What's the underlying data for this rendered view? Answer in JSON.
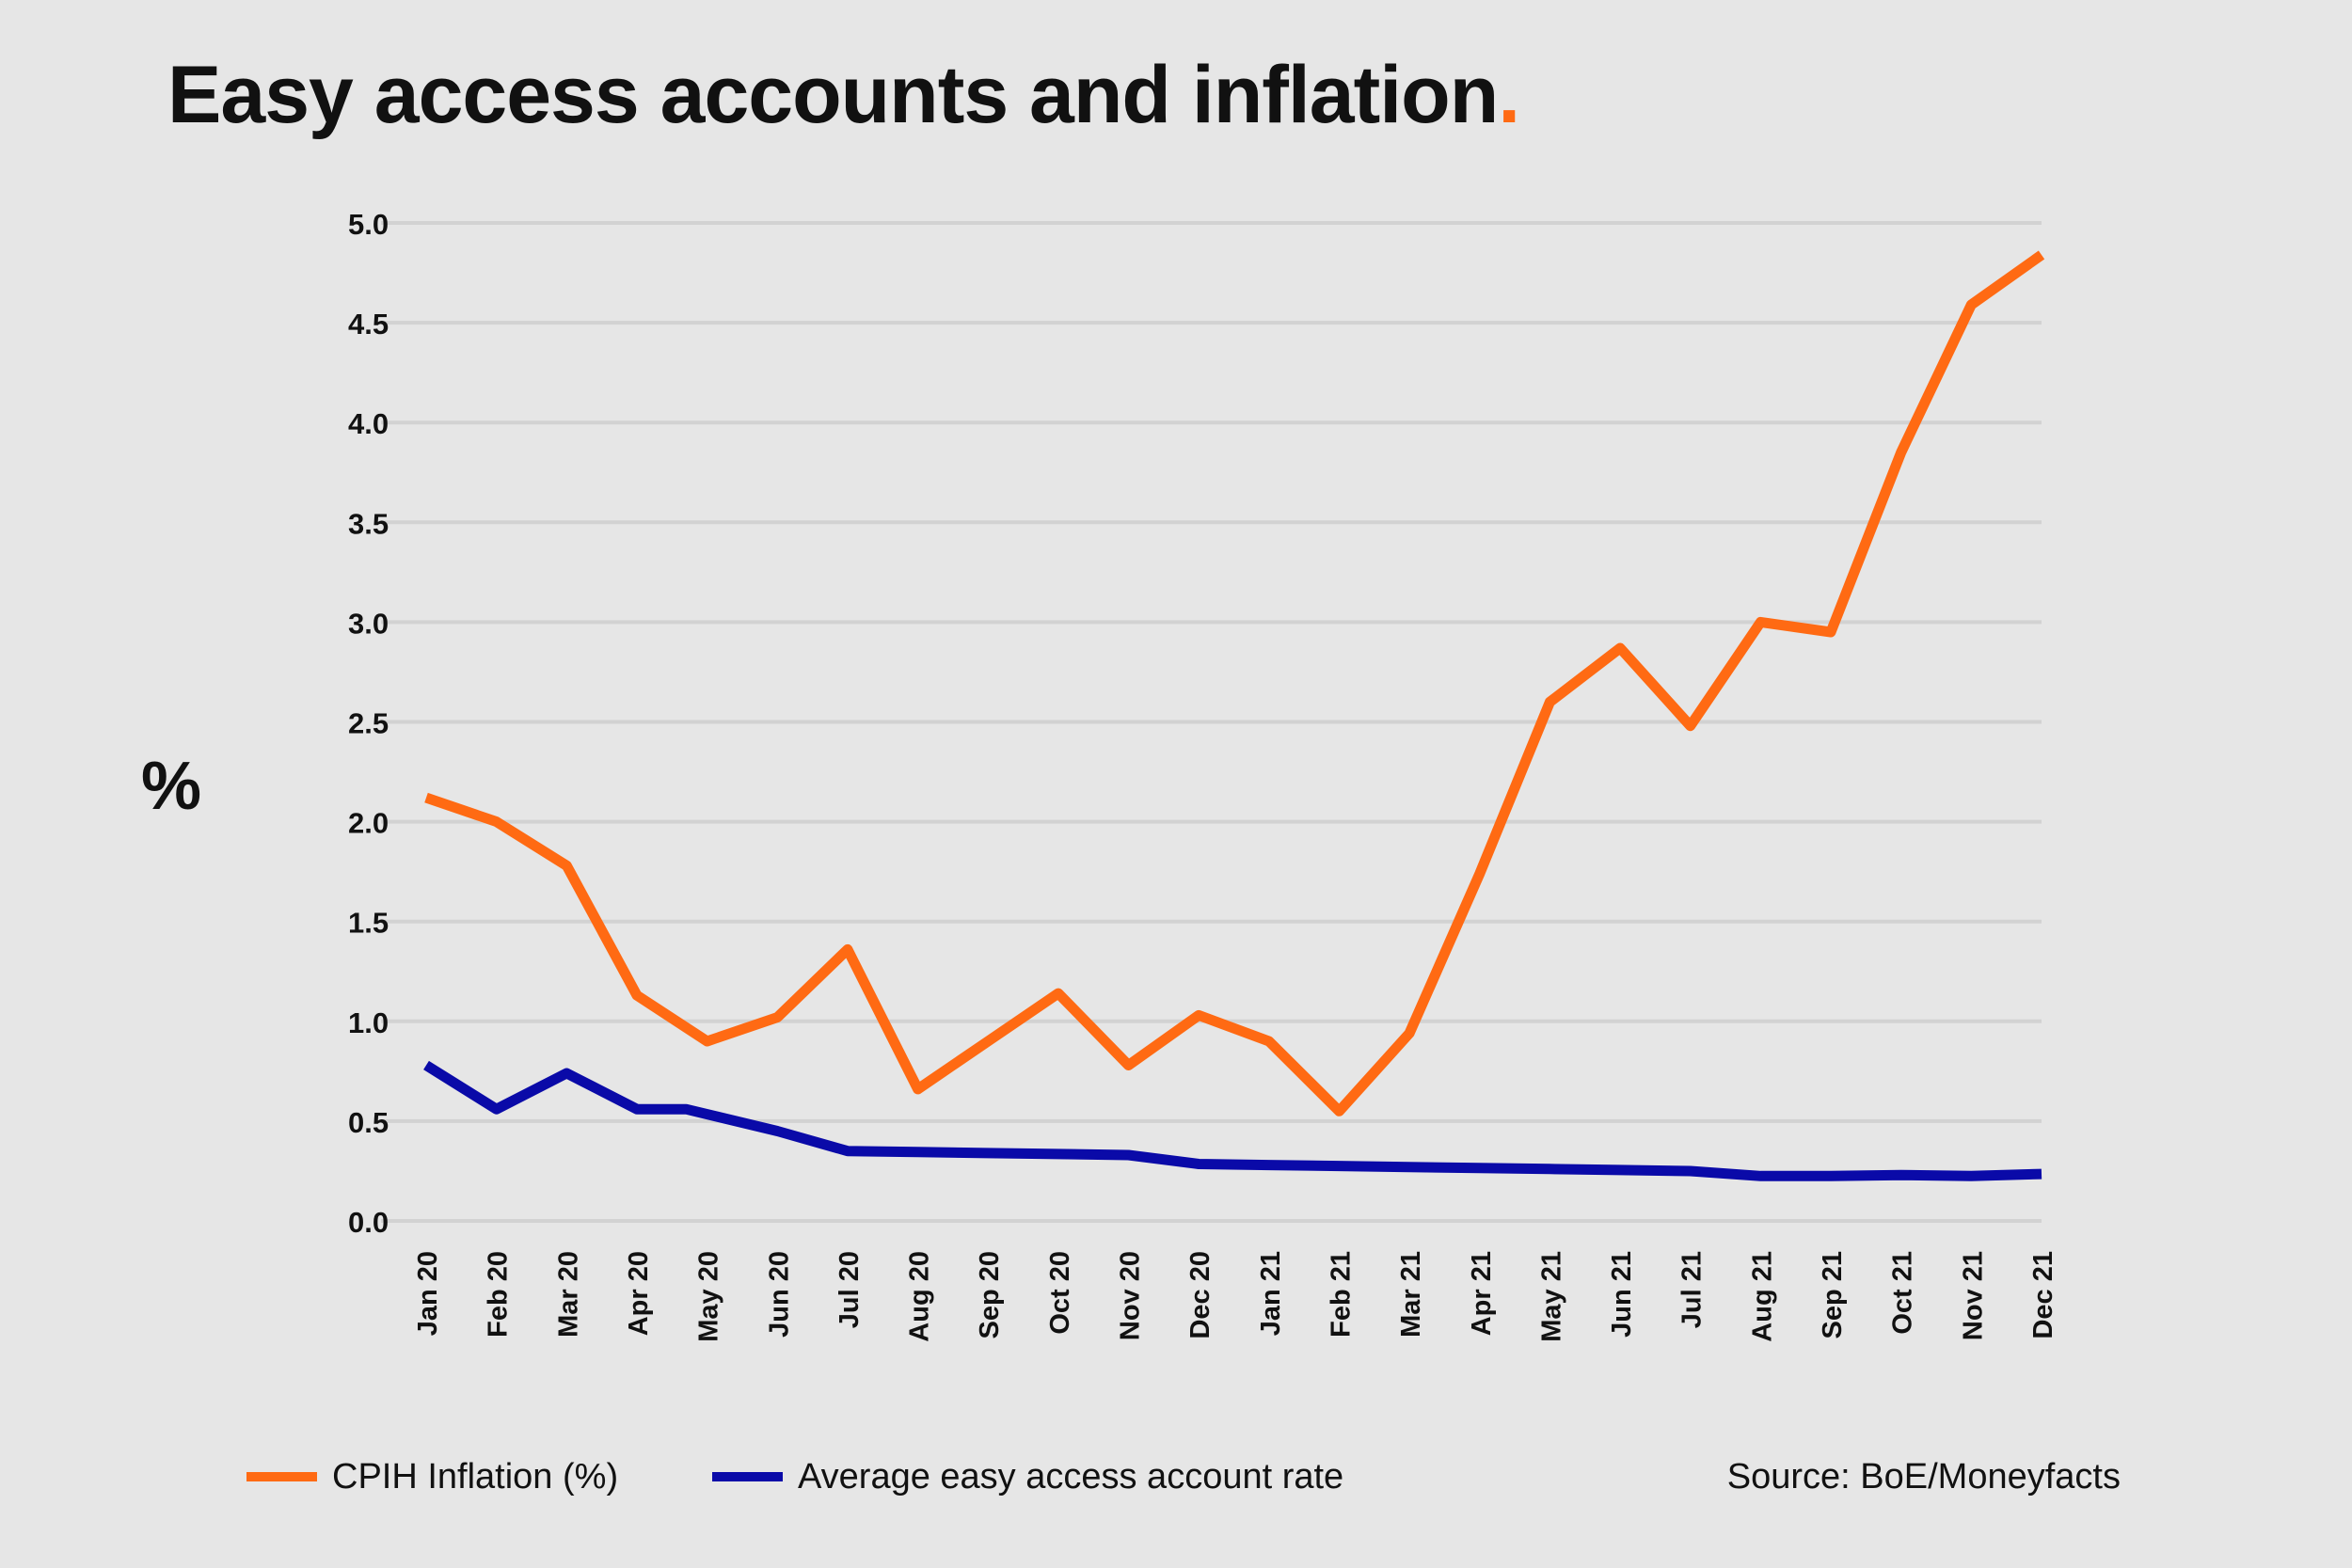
{
  "title": "Easy access accounts and inflation",
  "title_dot": ".",
  "source": "Source: BoE/Moneyfacts",
  "colors": {
    "background": "#e6e6e6",
    "cpih": "#ff6a13",
    "rate": "#0a0aa8",
    "grid": "#d2d2d2"
  },
  "chart_data": {
    "type": "line",
    "title": "Easy access accounts and inflation",
    "xlabel": "",
    "ylabel": "%",
    "ylim": [
      0,
      5
    ],
    "yticks": [
      "0.0",
      "0.5",
      "1.0",
      "1.5",
      "2.0",
      "2.5",
      "3.0",
      "3.5",
      "4.0",
      "4.5",
      "5.0"
    ],
    "grid": true,
    "legend": "bottom-left",
    "categories": [
      "Jan 20",
      "Feb 20",
      "Mar 20",
      "Apr 20",
      "May 20",
      "Jun 20",
      "Jul 20",
      "Aug 20",
      "Sep 20",
      "Oct 20",
      "Nov 20",
      "Dec 20",
      "Jan 21",
      "Feb 21",
      "Mar 21",
      "Apr 21",
      "May 21",
      "Jun 21",
      "Jul 21",
      "Aug 21",
      "Sep 21",
      "Oct 21",
      "Nov 21",
      "Dec 21"
    ],
    "series": [
      {
        "name": "CPIH Inflation (%)",
        "color": "#ff6a13",
        "points": [
          [
            0,
            2.12
          ],
          [
            1,
            2.0
          ],
          [
            2,
            1.78
          ],
          [
            3,
            1.13
          ],
          [
            4,
            0.9
          ],
          [
            5,
            1.02
          ],
          [
            6,
            1.36
          ],
          [
            7,
            0.66
          ],
          [
            8,
            0.9
          ],
          [
            9,
            1.14
          ],
          [
            10,
            0.78
          ],
          [
            11,
            1.03
          ],
          [
            12,
            0.9
          ],
          [
            13,
            0.55
          ],
          [
            14,
            0.94
          ],
          [
            15,
            1.74
          ],
          [
            16,
            2.6
          ],
          [
            17,
            2.87
          ],
          [
            18,
            2.48
          ],
          [
            19,
            3.0
          ],
          [
            20,
            2.95
          ],
          [
            21,
            3.85
          ],
          [
            22,
            4.59
          ],
          [
            23,
            4.84
          ]
        ]
      },
      {
        "name": "Average easy access account rate",
        "color": "#0a0aa8",
        "points": [
          [
            0,
            0.78
          ],
          [
            1,
            0.56
          ],
          [
            2,
            0.74
          ],
          [
            3,
            0.56
          ],
          [
            3.7,
            0.56
          ],
          [
            5,
            0.45
          ],
          [
            6,
            0.35
          ],
          [
            7,
            0.345
          ],
          [
            8,
            0.34
          ],
          [
            9,
            0.335
          ],
          [
            10,
            0.33
          ],
          [
            11,
            0.285
          ],
          [
            12,
            0.28
          ],
          [
            13,
            0.275
          ],
          [
            14,
            0.27
          ],
          [
            15,
            0.265
          ],
          [
            16,
            0.26
          ],
          [
            17,
            0.255
          ],
          [
            18,
            0.25
          ],
          [
            19,
            0.225
          ],
          [
            20,
            0.225
          ],
          [
            21,
            0.23
          ],
          [
            22,
            0.225
          ],
          [
            23,
            0.235
          ]
        ]
      }
    ]
  }
}
